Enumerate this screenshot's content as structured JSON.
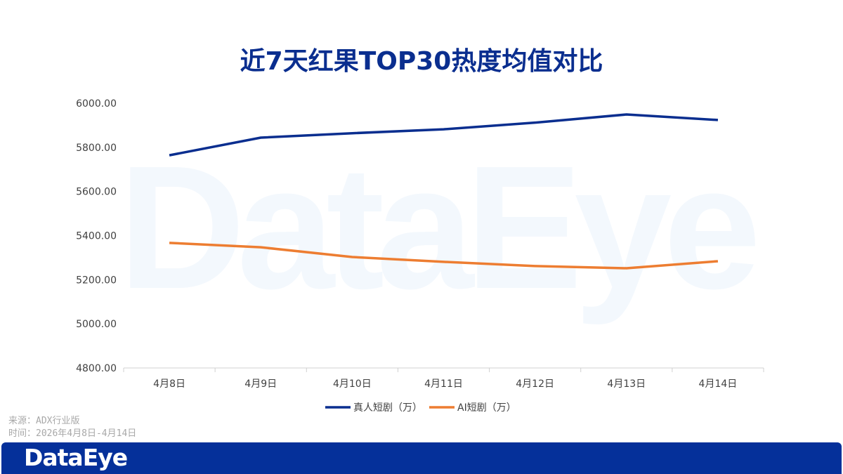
{
  "chart_data": {
    "type": "line",
    "title": "近7天红果TOP30热度均值对比",
    "categories": [
      "4月8日",
      "4月9日",
      "4月10日",
      "4月11日",
      "4月12日",
      "4月13日",
      "4月14日"
    ],
    "series": [
      {
        "name": "真人短剧（万）",
        "color": "#0a2e8f",
        "values": [
          5764,
          5844,
          5864,
          5882,
          5912,
          5949,
          5924
        ]
      },
      {
        "name": "AI短剧（万）",
        "color": "#ed7d31",
        "values": [
          5367,
          5347,
          5303,
          5281,
          5262,
          5252,
          5284
        ]
      }
    ],
    "ylim": [
      4800,
      6000
    ],
    "yticks": [
      "4800.00",
      "5000.00",
      "5200.00",
      "5400.00",
      "5600.00",
      "5800.00",
      "6000.00"
    ],
    "grid": false,
    "legend": "bottom",
    "watermark": "DataEye"
  },
  "source": "来源：ADX行业版",
  "time": "时间：2026年4月8日-4月14日",
  "footer": {
    "logo": "DataEye",
    "color": "#05309a"
  }
}
